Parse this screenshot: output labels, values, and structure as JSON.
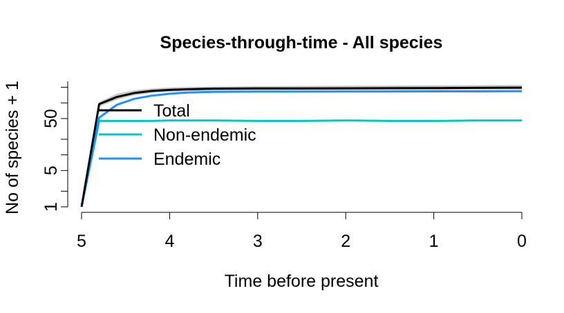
{
  "chart_data": {
    "type": "line",
    "title": "Species-through-time - All species",
    "xlabel": "Time before present",
    "ylabel": "No of species + 1",
    "x_reversed": true,
    "y_scale": "log",
    "xlim": [
      5,
      0
    ],
    "ylim": [
      1,
      260
    ],
    "x_ticks": [
      5,
      4,
      3,
      2,
      1,
      0
    ],
    "x_tick_labels": [
      "5",
      "4",
      "3",
      "2",
      "1",
      "0"
    ],
    "y_major_ticks": [
      1,
      5,
      50
    ],
    "y_major_tick_labels": [
      "1",
      "5",
      "50"
    ],
    "y_minor_ticks": [
      2,
      10,
      20,
      100,
      200
    ],
    "grid": false,
    "legend_position": "top-left",
    "series": [
      {
        "name": "Total",
        "color": "#000000",
        "x": [
          5.0,
          4.8,
          4.6,
          4.4,
          4.2,
          4.0,
          3.8,
          3.5,
          3.0,
          2.5,
          2.0,
          1.5,
          1.0,
          0.5,
          0.0
        ],
        "y": [
          1,
          95,
          130,
          155,
          170,
          178,
          183,
          188,
          190,
          190,
          191,
          192,
          193,
          195,
          197
        ]
      },
      {
        "name": "Non-endemic",
        "color": "#00C5CD",
        "x": [
          5.0,
          4.8,
          4.6,
          4.4,
          4.2,
          4.0,
          3.5,
          3.0,
          2.5,
          2.0,
          1.5,
          1.0,
          0.5,
          0.0
        ],
        "y": [
          1,
          45,
          45,
          45,
          45,
          46,
          46,
          45,
          45,
          46,
          45,
          45,
          46,
          46
        ]
      },
      {
        "name": "Endemic",
        "color": "#1E90FF",
        "x": [
          5.0,
          4.8,
          4.6,
          4.4,
          4.2,
          4.0,
          3.8,
          3.5,
          3.0,
          2.5,
          2.0,
          1.5,
          1.0,
          0.5,
          0.0
        ],
        "y": [
          1,
          52,
          92,
          120,
          138,
          150,
          158,
          163,
          165,
          165,
          166,
          166,
          167,
          167,
          168
        ]
      }
    ],
    "confidence_band": {
      "color": "#C8C8C8",
      "x": [
        5.0,
        4.8,
        4.6,
        4.4,
        4.2,
        4.0,
        3.8,
        3.5,
        3.0,
        2.5,
        2.0,
        1.5,
        1.0,
        0.5,
        0.0
      ],
      "lower": [
        1,
        85,
        115,
        140,
        155,
        163,
        168,
        172,
        174,
        175,
        176,
        176,
        177,
        178,
        180
      ],
      "upper": [
        1,
        105,
        150,
        175,
        190,
        198,
        203,
        207,
        210,
        212,
        214,
        216,
        218,
        220,
        222
      ]
    }
  }
}
